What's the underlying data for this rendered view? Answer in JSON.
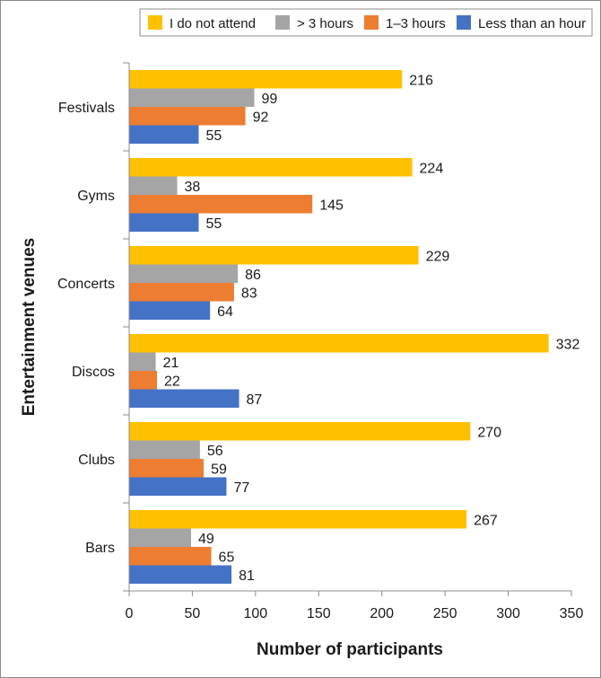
{
  "chart_data": {
    "type": "bar",
    "orientation": "horizontal",
    "title": "",
    "xlabel": "Number of participants",
    "ylabel": "Entertainment venues",
    "xlim": [
      0,
      350
    ],
    "xticks": [
      0,
      50,
      100,
      150,
      200,
      250,
      300,
      350
    ],
    "categories": [
      "Festivals",
      "Gyms",
      "Concerts",
      "Discos",
      "Clubs",
      "Bars"
    ],
    "series": [
      {
        "name": "I do not attend",
        "color": "#FFC000",
        "values": [
          216,
          224,
          229,
          332,
          270,
          267
        ]
      },
      {
        "name": "> 3 hours",
        "color": "#A5A5A5",
        "values": [
          99,
          38,
          86,
          21,
          56,
          49
        ]
      },
      {
        "name": "1–3 hours",
        "color": "#ED7D31",
        "values": [
          92,
          145,
          83,
          22,
          59,
          65
        ]
      },
      {
        "name": "Less than an hour",
        "color": "#4472C4",
        "values": [
          55,
          55,
          64,
          87,
          77,
          81
        ]
      }
    ],
    "legend_position": "top-right",
    "grid": false,
    "data_labels": true
  }
}
